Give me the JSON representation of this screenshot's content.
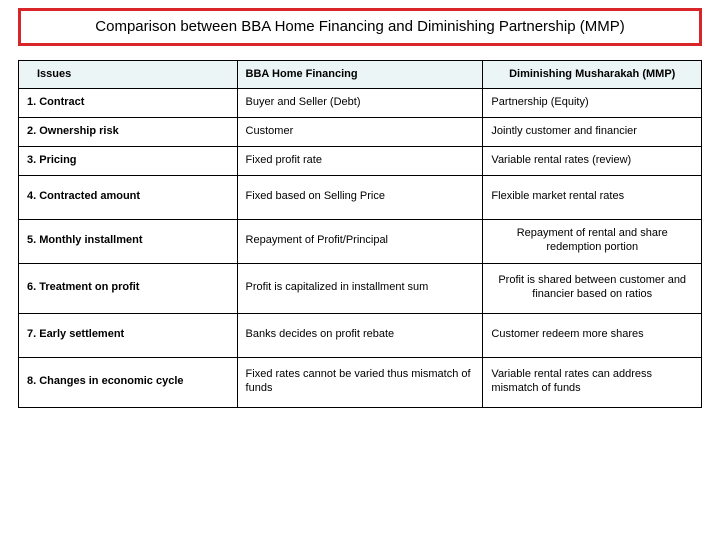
{
  "title": "Comparison between BBA Home Financing and Diminishing Partnership (MMP)",
  "table": {
    "columns": [
      "Issues",
      "BBA Home Financing",
      "Diminishing Musharakah (MMP)"
    ],
    "rows": [
      {
        "issue": "1. Contract",
        "bba": "Buyer and Seller (Debt)",
        "mmp": "Partnership (Equity)",
        "c3center": false
      },
      {
        "issue": "2.  Ownership risk",
        "bba": "Customer",
        "mmp": "Jointly customer and financier",
        "c3center": false
      },
      {
        "issue": "3.  Pricing",
        "bba": "Fixed profit rate",
        "mmp": "Variable rental rates (review)",
        "c3center": false
      },
      {
        "issue": "4. Contracted amount",
        "bba": "Fixed based on Selling Price",
        "mmp": "Flexible market rental rates",
        "c3center": false,
        "tall": true
      },
      {
        "issue": "5.  Monthly installment",
        "bba": "Repayment of Profit/Principal",
        "mmp": "Repayment of rental and share redemption portion",
        "c3center": true,
        "tall": true
      },
      {
        "issue": "6.  Treatment on profit",
        "bba": "Profit  is capitalized in installment sum",
        "mmp": "Profit is shared between customer and financier based on ratios",
        "c3center": true,
        "taller": true
      },
      {
        "issue": "7.  Early settlement",
        "bba": "Banks decides on profit rebate",
        "mmp": "Customer redeem more shares",
        "c3center": false,
        "tall": true
      },
      {
        "issue": "8. Changes in economic cycle",
        "bba": "Fixed rates cannot be varied thus mismatch of funds",
        "mmp": "Variable rental rates can address mismatch of funds",
        "c3center": false,
        "taller": true
      }
    ]
  },
  "style": {
    "title_border_color": "#d8252a",
    "header_bg": "#ecf5f5",
    "border_color": "#000000",
    "background": "#ffffff",
    "column_widths_pct": [
      32,
      36,
      32
    ],
    "title_fontsize": 15,
    "cell_fontsize": 11
  }
}
